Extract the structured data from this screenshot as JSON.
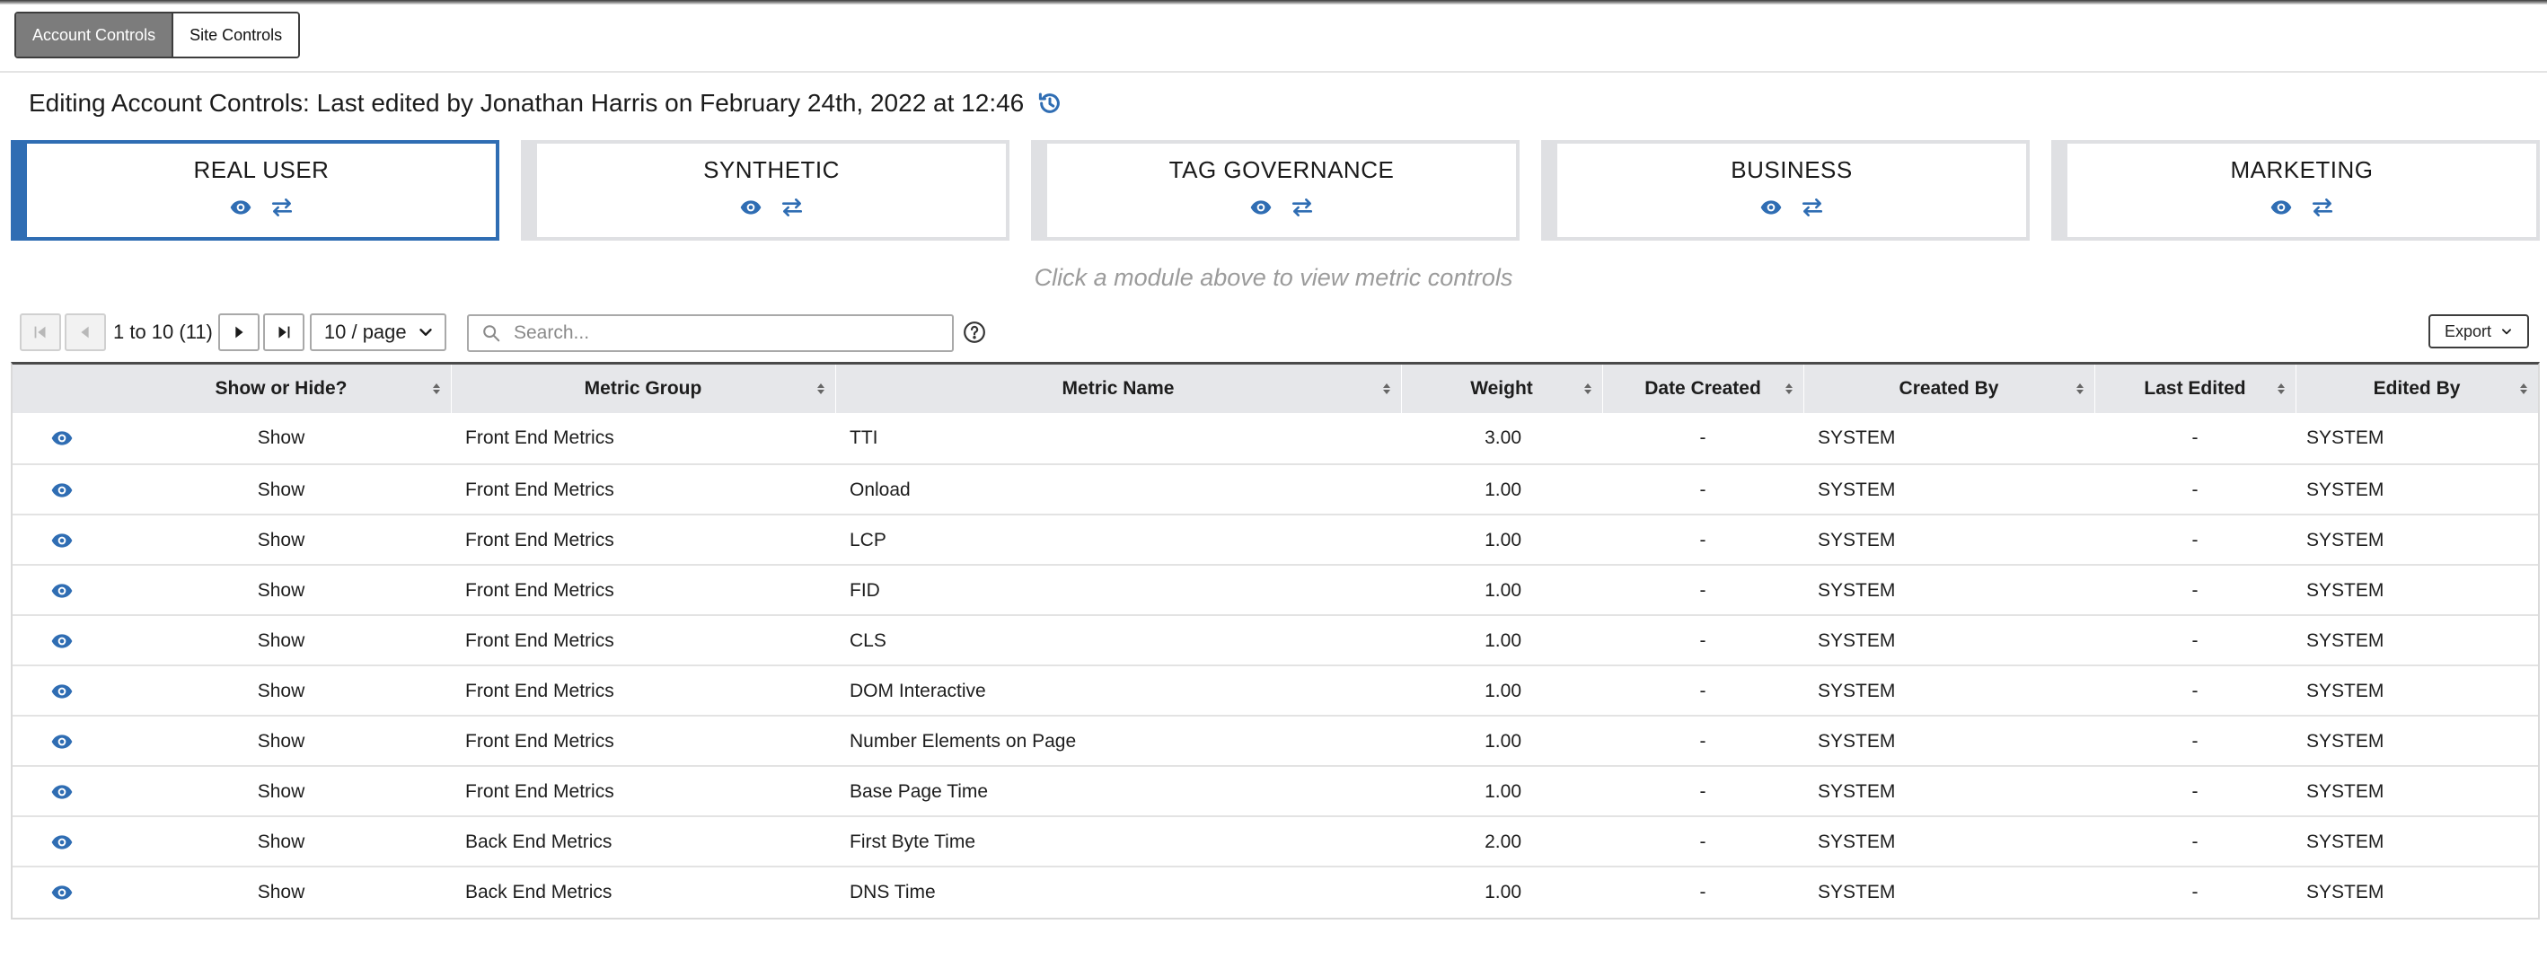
{
  "tabs": {
    "account": "Account Controls",
    "site": "Site Controls"
  },
  "heading": "Editing Account Controls: Last edited by Jonathan Harris on February 24th, 2022 at 12:46",
  "modules": [
    {
      "title": "REAL USER"
    },
    {
      "title": "SYNTHETIC"
    },
    {
      "title": "TAG GOVERNANCE"
    },
    {
      "title": "BUSINESS"
    },
    {
      "title": "MARKETING"
    }
  ],
  "hint": "Click a module above to view metric controls",
  "pager": {
    "count": "1 to 10 (11)",
    "page_size": "10 / page"
  },
  "search": {
    "placeholder": "Search..."
  },
  "export_label": "Export",
  "columns": {
    "show": "Show or Hide?",
    "group": "Metric Group",
    "name": "Metric Name",
    "weight": "Weight",
    "date_created": "Date Created",
    "created_by": "Created By",
    "last_edited": "Last Edited",
    "edited_by": "Edited By"
  },
  "rows": [
    {
      "show": "Show",
      "group": "Front End Metrics",
      "name": "TTI",
      "weight": "3.00",
      "date_created": "-",
      "created_by": "SYSTEM",
      "last_edited": "-",
      "edited_by": "SYSTEM"
    },
    {
      "show": "Show",
      "group": "Front End Metrics",
      "name": "Onload",
      "weight": "1.00",
      "date_created": "-",
      "created_by": "SYSTEM",
      "last_edited": "-",
      "edited_by": "SYSTEM"
    },
    {
      "show": "Show",
      "group": "Front End Metrics",
      "name": "LCP",
      "weight": "1.00",
      "date_created": "-",
      "created_by": "SYSTEM",
      "last_edited": "-",
      "edited_by": "SYSTEM"
    },
    {
      "show": "Show",
      "group": "Front End Metrics",
      "name": "FID",
      "weight": "1.00",
      "date_created": "-",
      "created_by": "SYSTEM",
      "last_edited": "-",
      "edited_by": "SYSTEM"
    },
    {
      "show": "Show",
      "group": "Front End Metrics",
      "name": "CLS",
      "weight": "1.00",
      "date_created": "-",
      "created_by": "SYSTEM",
      "last_edited": "-",
      "edited_by": "SYSTEM"
    },
    {
      "show": "Show",
      "group": "Front End Metrics",
      "name": "DOM Interactive",
      "weight": "1.00",
      "date_created": "-",
      "created_by": "SYSTEM",
      "last_edited": "-",
      "edited_by": "SYSTEM"
    },
    {
      "show": "Show",
      "group": "Front End Metrics",
      "name": "Number Elements on Page",
      "weight": "1.00",
      "date_created": "-",
      "created_by": "SYSTEM",
      "last_edited": "-",
      "edited_by": "SYSTEM"
    },
    {
      "show": "Show",
      "group": "Front End Metrics",
      "name": "Base Page Time",
      "weight": "1.00",
      "date_created": "-",
      "created_by": "SYSTEM",
      "last_edited": "-",
      "edited_by": "SYSTEM"
    },
    {
      "show": "Show",
      "group": "Back End Metrics",
      "name": "First Byte Time",
      "weight": "2.00",
      "date_created": "-",
      "created_by": "SYSTEM",
      "last_edited": "-",
      "edited_by": "SYSTEM"
    },
    {
      "show": "Show",
      "group": "Back End Metrics",
      "name": "DNS Time",
      "weight": "1.00",
      "date_created": "-",
      "created_by": "SYSTEM",
      "last_edited": "-",
      "edited_by": "SYSTEM"
    }
  ],
  "colors": {
    "accent": "#2f6db3",
    "header_bg": "#e6e7ea",
    "card_border": "#dfe0e3",
    "hint": "#9b9b9b"
  }
}
